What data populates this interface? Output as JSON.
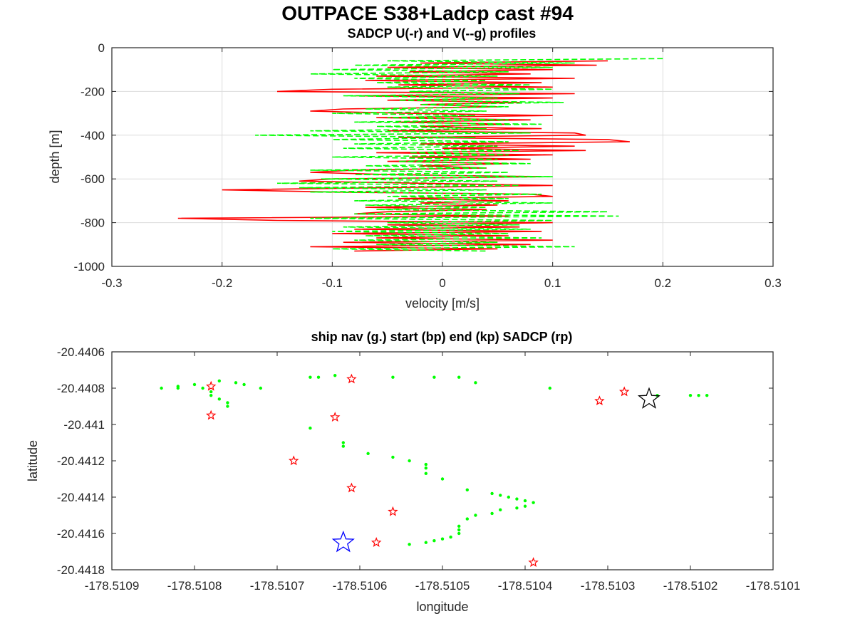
{
  "figure": {
    "title": "OUTPACE S38+Ladcp cast #94"
  },
  "chart_data": [
    {
      "type": "line",
      "title": "SADCP U(-r) and V(--g) profiles",
      "xlabel": "velocity [m/s]",
      "ylabel": "depth [m]",
      "xlim": [
        -0.3,
        0.3
      ],
      "ylim": [
        -1000,
        0
      ],
      "xticks": [
        "-0.3",
        "-0.2",
        "-0.1",
        "0",
        "0.1",
        "0.2",
        "0.3"
      ],
      "yticks": [
        "0",
        "-200",
        "-400",
        "-600",
        "-800",
        "-1000"
      ],
      "grid": true,
      "series": [
        {
          "line_style": "solid",
          "color": "#ff0000",
          "depth": [
            -60,
            -70,
            -80,
            -90,
            -100,
            -110,
            -120,
            -130,
            -140,
            -150,
            -160,
            -170,
            -180,
            -190,
            -200,
            -210,
            -220,
            -230,
            -240,
            -250,
            -260,
            -270,
            -280,
            -290,
            -300,
            -310,
            -320,
            -330,
            -340,
            -350,
            -360,
            -370,
            -380,
            -390,
            -400,
            -410,
            -420,
            -430,
            -440,
            -450,
            -460,
            -470,
            -480,
            -490,
            -500,
            -510,
            -520,
            -530,
            -540,
            -550,
            -560,
            -570,
            -580,
            -590,
            -600,
            -610,
            -620,
            -630,
            -640,
            -650,
            -660,
            -670,
            -680,
            -690,
            -700,
            -710,
            -720,
            -730,
            -740,
            -750,
            -760,
            -770,
            -780,
            -790,
            -800,
            -810,
            -820,
            -830,
            -840,
            -850,
            -860,
            -870,
            -880,
            -890,
            -900,
            -910,
            -920,
            -930
          ],
          "values": [
            0.15,
            -0.02,
            0.14,
            -0.05,
            0.1,
            -0.03,
            0.08,
            -0.06,
            0.12,
            -0.07,
            0.09,
            -0.04,
            0.1,
            -0.1,
            -0.15,
            0.12,
            -0.08,
            0.1,
            -0.05,
            0.07,
            -0.02,
            0.05,
            -0.09,
            -0.12,
            -0.03,
            0.1,
            -0.06,
            0.08,
            -0.04,
            0.06,
            -0.02,
            0.09,
            -0.05,
            0.12,
            0.13,
            -0.04,
            0.15,
            0.17,
            -0.02,
            0.12,
            0.0,
            0.13,
            -0.06,
            0.1,
            -0.03,
            0.08,
            -0.05,
            0.06,
            -0.02,
            0.04,
            -0.08,
            -0.12,
            -0.05,
            0.09,
            -0.1,
            -0.13,
            -0.02,
            0.1,
            -0.05,
            -0.2,
            -0.1,
            0.08,
            0.1,
            -0.04,
            0.06,
            -0.02,
            0.05,
            -0.07,
            0.04,
            -0.05,
            -0.08,
            0.06,
            -0.24,
            -0.15,
            0.1,
            -0.05,
            0.07,
            -0.08,
            0.09,
            -0.1,
            0.06,
            -0.06,
            0.1,
            -0.09,
            0.08,
            -0.12,
            0.05,
            -0.08
          ]
        },
        {
          "line_style": "dashed",
          "color": "#00ff00",
          "depth": [
            -50,
            -60,
            -70,
            -80,
            -90,
            -100,
            -110,
            -120,
            -130,
            -140,
            -150,
            -160,
            -170,
            -180,
            -190,
            -200,
            -210,
            -220,
            -230,
            -240,
            -250,
            -260,
            -270,
            -280,
            -290,
            -300,
            -310,
            -320,
            -330,
            -340,
            -350,
            -360,
            -370,
            -380,
            -390,
            -400,
            -410,
            -420,
            -430,
            -440,
            -450,
            -460,
            -470,
            -480,
            -490,
            -500,
            -510,
            -520,
            -530,
            -540,
            -550,
            -560,
            -570,
            -580,
            -590,
            -600,
            -610,
            -620,
            -630,
            -640,
            -650,
            -660,
            -670,
            -680,
            -690,
            -700,
            -710,
            -720,
            -730,
            -740,
            -750,
            -760,
            -770,
            -780,
            -790,
            -800,
            -810,
            -820,
            -830,
            -840,
            -850,
            -860,
            -870,
            -880,
            -890,
            -900,
            -910,
            -920,
            -930
          ],
          "values": [
            0.2,
            -0.05,
            0.12,
            -0.08,
            0.1,
            -0.1,
            0.06,
            -0.12,
            0.05,
            -0.08,
            0.04,
            -0.06,
            0.08,
            -0.05,
            0.1,
            -0.03,
            0.07,
            -0.09,
            0.05,
            -0.04,
            0.11,
            -0.02,
            0.06,
            -0.07,
            0.04,
            -0.1,
            0.03,
            -0.05,
            0.06,
            -0.08,
            0.09,
            -0.06,
            0.04,
            -0.12,
            0.08,
            -0.17,
            0.03,
            -0.1,
            0.06,
            -0.08,
            0.05,
            -0.09,
            0.07,
            -0.03,
            0.06,
            -0.1,
            0.05,
            -0.04,
            0.08,
            -0.07,
            0.04,
            -0.12,
            0.06,
            -0.08,
            0.1,
            -0.11,
            0.05,
            -0.15,
            0.07,
            -0.13,
            0.04,
            -0.12,
            0.09,
            -0.05,
            0.06,
            -0.08,
            0.1,
            -0.07,
            0.04,
            -0.06,
            0.15,
            -0.08,
            0.16,
            -0.12,
            0.1,
            -0.05,
            0.07,
            -0.09,
            0.08,
            -0.1,
            0.06,
            -0.07,
            0.09,
            -0.08,
            0.05,
            -0.06,
            0.12,
            -0.1,
            0.04
          ]
        }
      ]
    },
    {
      "type": "scatter",
      "title": "ship nav (g.) start (bp) end (kp) SADCP (rp)",
      "xlabel": "longitude",
      "ylabel": "latitude",
      "xlim": [
        -178.5109,
        -178.5101
      ],
      "ylim": [
        -20.4418,
        -20.4406
      ],
      "xticks": [
        "-178.5109",
        "-178.5108",
        "-178.5107",
        "-178.5106",
        "-178.5105",
        "-178.5104",
        "-178.5103",
        "-178.5102",
        "-178.5101"
      ],
      "yticks": [
        "-20.4406",
        "-20.4408",
        "-20.441",
        "-20.4412",
        "-20.4414",
        "-20.4416",
        "-20.4418"
      ],
      "grid": false,
      "ship_nav": {
        "color": "#00ff00",
        "points": [
          [
            -178.51084,
            -20.4408
          ],
          [
            -178.51082,
            -20.4408
          ],
          [
            -178.51082,
            -20.44079
          ],
          [
            -178.5108,
            -20.44078
          ],
          [
            -178.51079,
            -20.4408
          ],
          [
            -178.51078,
            -20.44082
          ],
          [
            -178.51078,
            -20.44084
          ],
          [
            -178.51077,
            -20.44086
          ],
          [
            -178.51076,
            -20.44088
          ],
          [
            -178.51076,
            -20.4409
          ],
          [
            -178.51077,
            -20.44076
          ],
          [
            -178.51075,
            -20.44077
          ],
          [
            -178.51074,
            -20.44078
          ],
          [
            -178.51072,
            -20.4408
          ],
          [
            -178.51066,
            -20.44074
          ],
          [
            -178.51065,
            -20.44074
          ],
          [
            -178.51063,
            -20.44073
          ],
          [
            -178.51056,
            -20.44074
          ],
          [
            -178.51051,
            -20.44074
          ],
          [
            -178.51048,
            -20.44074
          ],
          [
            -178.51046,
            -20.44077
          ],
          [
            -178.51037,
            -20.4408
          ],
          [
            -178.51066,
            -20.44102
          ],
          [
            -178.51062,
            -20.4411
          ],
          [
            -178.51062,
            -20.44112
          ],
          [
            -178.51059,
            -20.44116
          ],
          [
            -178.51056,
            -20.44118
          ],
          [
            -178.51054,
            -20.4412
          ],
          [
            -178.51052,
            -20.44122
          ],
          [
            -178.51052,
            -20.44124
          ],
          [
            -178.51052,
            -20.44127
          ],
          [
            -178.5105,
            -20.4413
          ],
          [
            -178.51047,
            -20.44136
          ],
          [
            -178.51044,
            -20.44138
          ],
          [
            -178.51043,
            -20.44139
          ],
          [
            -178.51042,
            -20.4414
          ],
          [
            -178.51041,
            -20.44141
          ],
          [
            -178.5104,
            -20.44142
          ],
          [
            -178.51039,
            -20.44143
          ],
          [
            -178.5104,
            -20.44145
          ],
          [
            -178.51041,
            -20.44146
          ],
          [
            -178.51043,
            -20.44147
          ],
          [
            -178.51044,
            -20.44149
          ],
          [
            -178.51046,
            -20.4415
          ],
          [
            -178.51047,
            -20.44152
          ],
          [
            -178.51048,
            -20.44156
          ],
          [
            -178.51048,
            -20.44158
          ],
          [
            -178.51048,
            -20.4416
          ],
          [
            -178.51049,
            -20.44162
          ],
          [
            -178.5105,
            -20.44163
          ],
          [
            -178.51051,
            -20.44164
          ],
          [
            -178.51052,
            -20.44165
          ],
          [
            -178.51054,
            -20.44166
          ],
          [
            -178.51024,
            -20.44084
          ],
          [
            -178.5102,
            -20.44084
          ],
          [
            -178.51019,
            -20.44084
          ],
          [
            -178.51018,
            -20.44084
          ]
        ]
      },
      "sadcp": {
        "color": "#ff0000",
        "points": [
          [
            -178.51078,
            -20.44079
          ],
          [
            -178.51078,
            -20.44095
          ],
          [
            -178.51061,
            -20.44075
          ],
          [
            -178.51063,
            -20.44096
          ],
          [
            -178.51068,
            -20.4412
          ],
          [
            -178.51061,
            -20.44135
          ],
          [
            -178.51056,
            -20.44148
          ],
          [
            -178.51058,
            -20.44165
          ],
          [
            -178.51039,
            -20.44176
          ],
          [
            -178.51028,
            -20.44082
          ],
          [
            -178.51031,
            -20.44087
          ]
        ]
      },
      "start": {
        "color": "#0000ff",
        "lon": -178.51062,
        "lat": -20.44165
      },
      "end": {
        "color": "#000000",
        "lon": -178.51025,
        "lat": -20.44086
      }
    }
  ]
}
